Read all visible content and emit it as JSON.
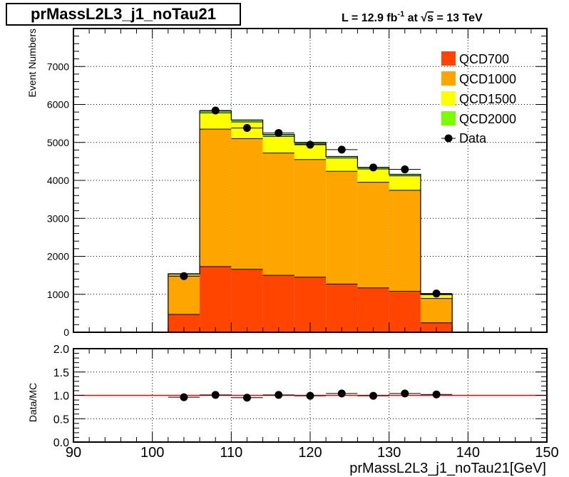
{
  "title": "prMassL2L3_j1_noTau21",
  "lumi_text": {
    "prefix": "L = 12.9 fb",
    "exponent": "-1",
    "mid": " at ",
    "sqrt": "√",
    "s_label": "s",
    "suffix": " = 13 TeV"
  },
  "chart_data": [
    {
      "type": "bar",
      "subtype": "stacked-histogram",
      "ylabel": "Event Numbers",
      "xlim": [
        90,
        150
      ],
      "ylim": [
        0,
        8000
      ],
      "yticks": [
        "0",
        "1000",
        "2000",
        "3000",
        "4000",
        "5000",
        "6000",
        "7000"
      ],
      "ytick_values": [
        0,
        1000,
        2000,
        3000,
        4000,
        5000,
        6000,
        7000
      ],
      "grid": true,
      "legend_position": "top-right",
      "bin_edges": [
        90,
        94,
        98,
        102,
        106,
        110,
        114,
        118,
        122,
        126,
        130,
        134,
        138,
        142,
        146,
        150
      ],
      "series": [
        {
          "name": "QCD700",
          "color": "#ff4500",
          "values": [
            0,
            0,
            0,
            470,
            1730,
            1660,
            1500,
            1450,
            1270,
            1170,
            1080,
            250,
            0,
            0,
            0
          ]
        },
        {
          "name": "QCD1000",
          "color": "#ffa500",
          "values": [
            0,
            0,
            0,
            1010,
            3620,
            3440,
            3220,
            3100,
            2970,
            2780,
            2660,
            640,
            0,
            0,
            0
          ]
        },
        {
          "name": "QCD1500",
          "color": "#ffff00",
          "values": [
            0,
            0,
            0,
            50,
            430,
            440,
            440,
            410,
            350,
            350,
            380,
            100,
            0,
            0,
            0
          ]
        },
        {
          "name": "QCD2000",
          "color": "#7cfc00",
          "values": [
            0,
            0,
            0,
            10,
            50,
            50,
            50,
            40,
            40,
            40,
            40,
            10,
            0,
            0,
            0
          ]
        }
      ],
      "data": {
        "name": "Data",
        "color": "#000000",
        "x": [
          104,
          108,
          112,
          116,
          120,
          124,
          128,
          132,
          136
        ],
        "y": [
          1480,
          5840,
          5380,
          5250,
          4940,
          4810,
          4340,
          4290,
          1020
        ]
      }
    },
    {
      "type": "scatter",
      "ylabel": "Data/MC",
      "xlabel": "prMassL2L3_j1_noTau21[GeV]",
      "xlim": [
        90,
        150
      ],
      "ylim": [
        0,
        2
      ],
      "xticks": [
        "90",
        "100",
        "110",
        "120",
        "130",
        "140",
        "150"
      ],
      "xtick_values": [
        90,
        100,
        110,
        120,
        130,
        140,
        150
      ],
      "yticks": [
        "0.0",
        "0.5",
        "1.0",
        "1.5",
        "2.0"
      ],
      "ytick_values": [
        0,
        0.5,
        1,
        1.5,
        2
      ],
      "grid": true,
      "reference_line": {
        "y": 1.0,
        "color": "#ff0000"
      },
      "x": [
        104,
        108,
        112,
        116,
        120,
        124,
        128,
        132,
        136
      ],
      "y": [
        0.96,
        1.01,
        0.95,
        1.01,
        0.99,
        1.04,
        0.99,
        1.04,
        1.02
      ]
    }
  ]
}
